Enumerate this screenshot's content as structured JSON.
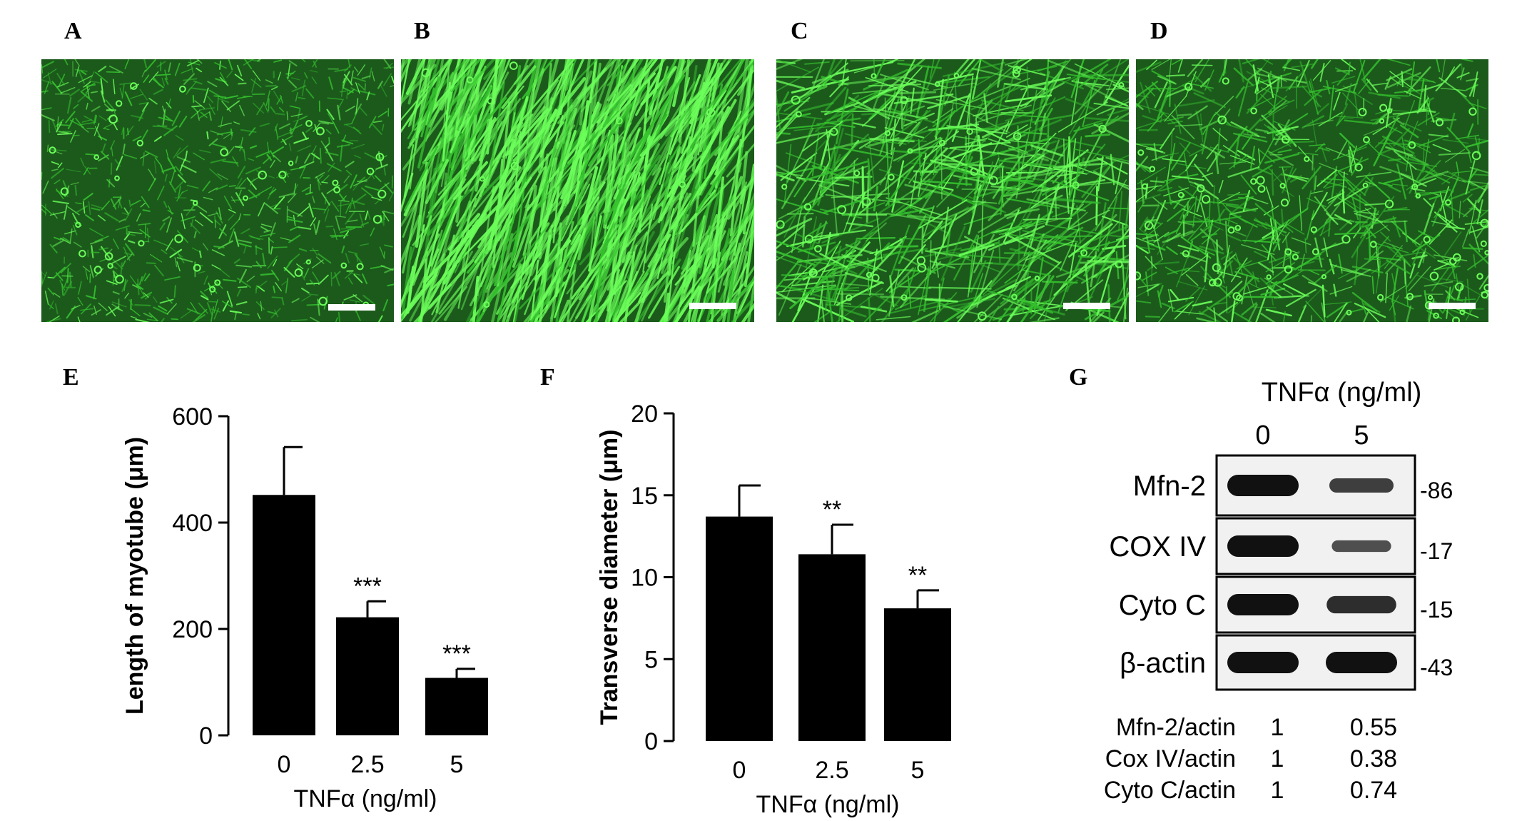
{
  "panels": {
    "micrographs": [
      {
        "letter": "A",
        "scale_bar": true
      },
      {
        "letter": "B",
        "scale_bar": true
      },
      {
        "letter": "C",
        "scale_bar": true
      },
      {
        "letter": "D",
        "scale_bar": true
      }
    ],
    "E": {
      "letter": "E"
    },
    "F": {
      "letter": "F"
    },
    "G": {
      "letter": "G"
    }
  },
  "colors": {
    "micro_bg": "#1c5a1c",
    "micro_cell": "#35c12e",
    "micro_bright": "#6cff5a",
    "bar": "#000000",
    "blot_bg": "#f1f1f1",
    "band": "#111111"
  },
  "chart_data": [
    {
      "type": "bar",
      "panel": "E",
      "categories": [
        "0",
        "2.5",
        "5"
      ],
      "values": [
        452,
        222,
        108
      ],
      "errors": [
        90,
        30,
        17
      ],
      "significance": [
        "",
        "***",
        "***"
      ],
      "xlabel": "TNFα (ng/ml)",
      "ylabel": "Length of myotube (μm)",
      "ylim": [
        0,
        600
      ],
      "yticks": [
        0,
        200,
        400,
        600
      ]
    },
    {
      "type": "bar",
      "panel": "F",
      "categories": [
        "0",
        "2.5",
        "5"
      ],
      "values": [
        13.7,
        11.4,
        8.1
      ],
      "errors": [
        1.9,
        1.8,
        1.1
      ],
      "significance": [
        "",
        "**",
        "**"
      ],
      "xlabel": "TNFα (ng/ml)",
      "ylabel": "Transverse diameter (μm)",
      "ylim": [
        0,
        20
      ],
      "yticks": [
        0,
        5,
        10,
        15,
        20
      ]
    },
    {
      "type": "table",
      "panel": "G",
      "title": "TNFα (ng/ml)",
      "lanes": [
        "0",
        "5"
      ],
      "blots": [
        {
          "label": "Mfn-2",
          "mw": "-86",
          "intensity": [
            1,
            0.55
          ]
        },
        {
          "label": "COX IV",
          "mw": "-17",
          "intensity": [
            1,
            0.38
          ]
        },
        {
          "label": "Cyto C",
          "mw": "-15",
          "intensity": [
            1,
            0.74
          ]
        },
        {
          "label": "β-actin",
          "mw": "-43",
          "intensity": [
            1,
            1
          ]
        }
      ],
      "ratios": [
        {
          "label": "Mfn-2/actin",
          "values": [
            "1",
            "0.55"
          ]
        },
        {
          "label": "Cox IV/actin",
          "values": [
            "1",
            "0.38"
          ]
        },
        {
          "label": "Cyto C/actin",
          "values": [
            "1",
            "0.74"
          ]
        }
      ]
    }
  ]
}
